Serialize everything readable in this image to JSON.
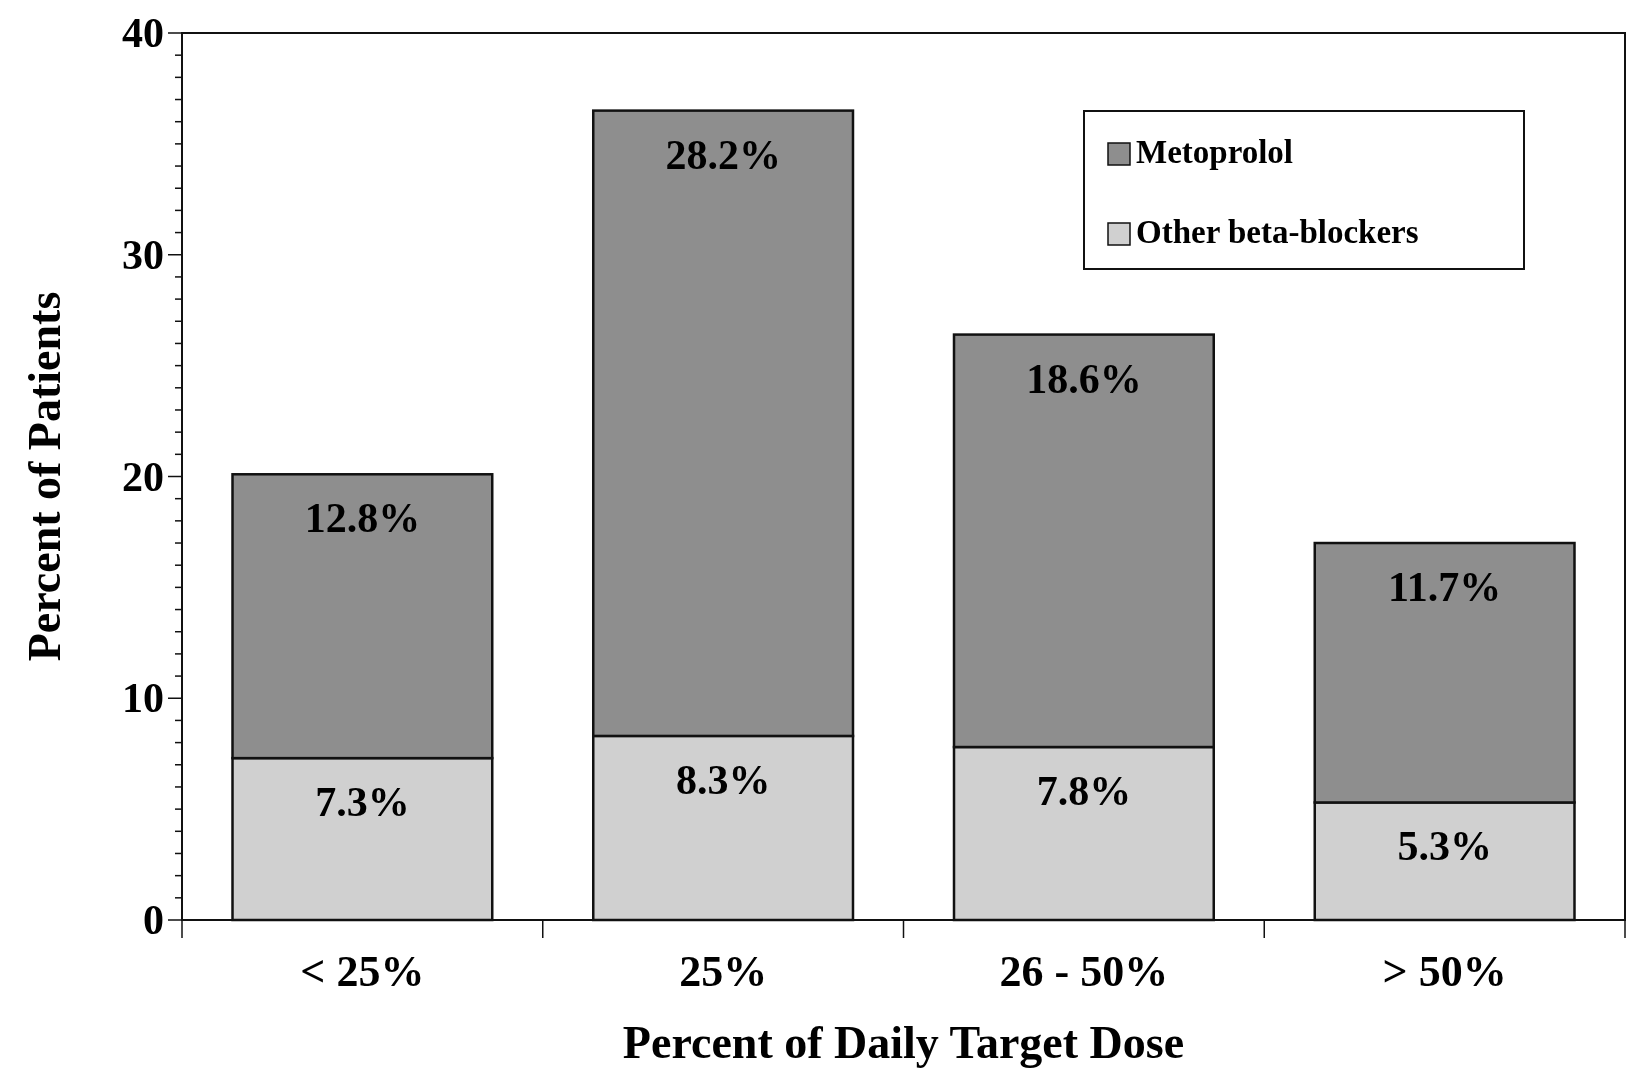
{
  "chart_data": {
    "type": "bar",
    "stacked": true,
    "xlabel": "Percent of Daily Target Dose",
    "ylabel": "Percent of Patients",
    "categories": [
      "< 25%",
      "25%",
      "26 - 50%",
      "> 50%"
    ],
    "series": [
      {
        "name": "Other beta-blockers",
        "color": "#d0d0d0",
        "values": [
          7.3,
          8.3,
          7.8,
          5.3
        ],
        "value_labels": [
          "7.3%",
          "8.3%",
          "7.8%",
          "5.3%"
        ]
      },
      {
        "name": "Metoprolol",
        "color": "#8e8e8e",
        "values": [
          12.8,
          28.2,
          18.6,
          11.7
        ],
        "value_labels": [
          "12.8%",
          "28.2%",
          "18.6%",
          "11.7%"
        ]
      }
    ],
    "ylim": [
      0,
      40
    ],
    "yticks": [
      0,
      {
        "value": 1,
        "label": null
      },
      {
        "value": 2,
        "label": null
      },
      {
        "value": 3,
        "label": null
      },
      {
        "value": 4,
        "label": null
      },
      {
        "value": 5,
        "label": null
      },
      {
        "value": 6,
        "label": null
      },
      {
        "value": 7,
        "label": null
      },
      {
        "value": 8,
        "label": null
      },
      {
        "value": 9,
        "label": null
      },
      10,
      {
        "value": 11,
        "label": null
      },
      {
        "value": 12,
        "label": null
      },
      {
        "value": 13,
        "label": null
      },
      {
        "value": 14,
        "label": null
      },
      {
        "value": 15,
        "label": null
      },
      {
        "value": 16,
        "label": null
      },
      {
        "value": 17,
        "label": null
      },
      {
        "value": 18,
        "label": null
      },
      {
        "value": 19,
        "label": null
      },
      20,
      {
        "value": 21,
        "label": null
      },
      {
        "value": 22,
        "label": null
      },
      {
        "value": 23,
        "label": null
      },
      {
        "value": 24,
        "label": null
      },
      {
        "value": 25,
        "label": null
      },
      {
        "value": 26,
        "label": null
      },
      {
        "value": 27,
        "label": null
      },
      {
        "value": 28,
        "label": null
      },
      {
        "value": 29,
        "label": null
      },
      30,
      {
        "value": 31,
        "label": null
      },
      {
        "value": 32,
        "label": null
      },
      {
        "value": 33,
        "label": null
      },
      {
        "value": 34,
        "label": null
      },
      {
        "value": 35,
        "label": null
      },
      {
        "value": 36,
        "label": null
      },
      {
        "value": 37,
        "label": null
      },
      {
        "value": 38,
        "label": null
      },
      {
        "value": 39,
        "label": null
      },
      40
    ],
    "grid": false,
    "legend": "top right"
  }
}
